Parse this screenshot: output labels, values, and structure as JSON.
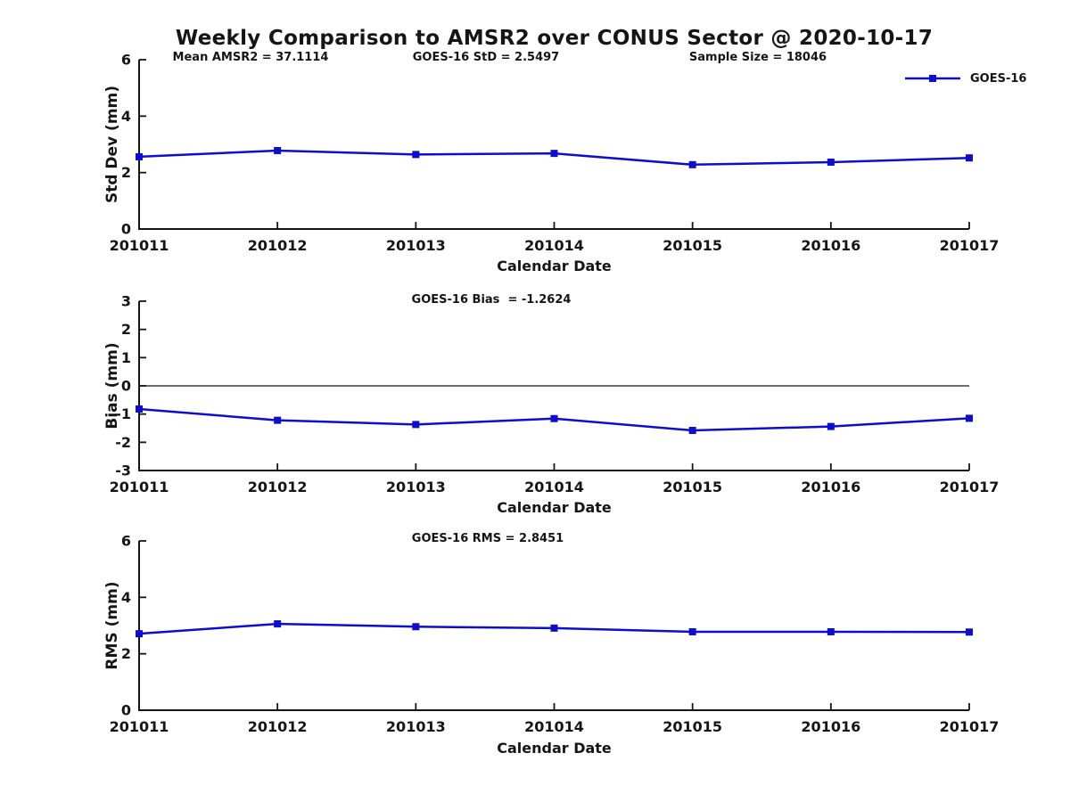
{
  "title": "Weekly Comparison to AMSR2 over CONUS Sector @ 2020-10-17",
  "legend": {
    "label": "GOES-16"
  },
  "colors": {
    "line": "#0d0dcf",
    "axis": "#151515"
  },
  "chart_data": [
    {
      "type": "line",
      "name": "std-dev",
      "title": "",
      "ylabel": "Std Dev (mm)",
      "xlabel": "Calendar Date",
      "categories": [
        "201011",
        "201012",
        "201013",
        "201014",
        "201015",
        "201016",
        "201017"
      ],
      "series": [
        {
          "name": "GOES-16",
          "values": [
            2.56,
            2.78,
            2.64,
            2.68,
            2.28,
            2.37,
            2.52
          ]
        }
      ],
      "ylim": [
        0,
        6
      ],
      "yticks": [
        0,
        2,
        4,
        6
      ],
      "grid": false,
      "zero_line": false,
      "legend_position": "upper-right-outside",
      "annotations": [
        "Mean AMSR2 = 37.1114",
        "GOES-16 StD = 2.5497",
        "Sample Size = 18046"
      ]
    },
    {
      "type": "line",
      "name": "bias",
      "title": "",
      "ylabel": "Bias (mm)",
      "xlabel": "Calendar Date",
      "categories": [
        "201011",
        "201012",
        "201013",
        "201014",
        "201015",
        "201016",
        "201017"
      ],
      "series": [
        {
          "name": "GOES-16",
          "values": [
            -0.82,
            -1.22,
            -1.37,
            -1.16,
            -1.58,
            -1.44,
            -1.15
          ]
        }
      ],
      "ylim": [
        -3,
        3
      ],
      "yticks": [
        -3,
        -2,
        -1,
        0,
        1,
        2,
        3
      ],
      "grid": false,
      "zero_line": true,
      "annotations": [
        "GOES-16 Bias  = -1.2624"
      ]
    },
    {
      "type": "line",
      "name": "rms",
      "title": "",
      "ylabel": "RMS (mm)",
      "xlabel": "Calendar Date",
      "categories": [
        "201011",
        "201012",
        "201013",
        "201014",
        "201015",
        "201016",
        "201017"
      ],
      "series": [
        {
          "name": "GOES-16",
          "values": [
            2.71,
            3.06,
            2.96,
            2.91,
            2.78,
            2.78,
            2.77
          ]
        }
      ],
      "ylim": [
        0,
        6
      ],
      "yticks": [
        0,
        2,
        4,
        6
      ],
      "grid": false,
      "zero_line": false,
      "annotations": [
        "GOES-16 RMS = 2.8451"
      ]
    }
  ]
}
